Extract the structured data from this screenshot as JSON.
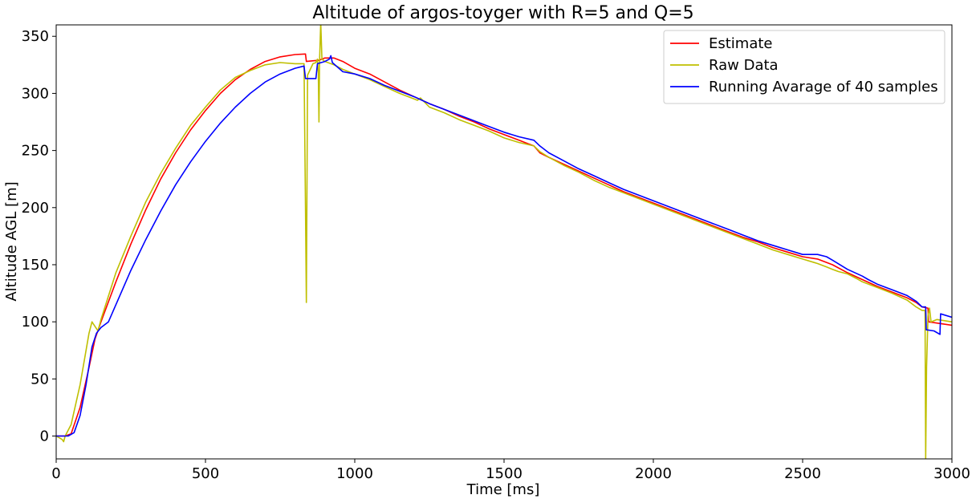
{
  "chart_data": {
    "type": "line",
    "title": "Altitude of argos-toyger with R=5 and Q=5",
    "xlabel": "Time [ms]",
    "ylabel": "Altitude AGL [m]",
    "xlim": [
      0,
      3000
    ],
    "ylim": [
      -20,
      360
    ],
    "xticks": [
      0,
      500,
      1000,
      1500,
      2000,
      2500,
      3000
    ],
    "yticks": [
      0,
      50,
      100,
      150,
      200,
      250,
      300,
      350
    ],
    "grid": false,
    "legend_position": "top-right",
    "series": [
      {
        "name": "Estimate",
        "color": "#ff0000",
        "points": [
          [
            0,
            0
          ],
          [
            30,
            0
          ],
          [
            50,
            2
          ],
          [
            80,
            25
          ],
          [
            110,
            60
          ],
          [
            130,
            85
          ],
          [
            150,
            100
          ],
          [
            200,
            135
          ],
          [
            250,
            168
          ],
          [
            300,
            198
          ],
          [
            350,
            225
          ],
          [
            400,
            248
          ],
          [
            450,
            268
          ],
          [
            500,
            285
          ],
          [
            550,
            300
          ],
          [
            600,
            312
          ],
          [
            650,
            321
          ],
          [
            700,
            328
          ],
          [
            750,
            332
          ],
          [
            800,
            334
          ],
          [
            835,
            334.5
          ],
          [
            838,
            328
          ],
          [
            880,
            329
          ],
          [
            900,
            331
          ],
          [
            930,
            331
          ],
          [
            960,
            328
          ],
          [
            1000,
            322
          ],
          [
            1050,
            317
          ],
          [
            1100,
            310
          ],
          [
            1150,
            303
          ],
          [
            1200,
            297
          ],
          [
            1250,
            291
          ],
          [
            1300,
            286
          ],
          [
            1350,
            280
          ],
          [
            1400,
            275
          ],
          [
            1450,
            269
          ],
          [
            1500,
            264
          ],
          [
            1550,
            259
          ],
          [
            1580,
            256
          ],
          [
            1600,
            254
          ],
          [
            1620,
            248
          ],
          [
            1650,
            244
          ],
          [
            1700,
            238
          ],
          [
            1750,
            232
          ],
          [
            1800,
            226
          ],
          [
            1850,
            220
          ],
          [
            1900,
            214
          ],
          [
            1950,
            209
          ],
          [
            2000,
            204
          ],
          [
            2050,
            199
          ],
          [
            2100,
            194
          ],
          [
            2150,
            189
          ],
          [
            2200,
            184
          ],
          [
            2250,
            179
          ],
          [
            2300,
            174
          ],
          [
            2350,
            170
          ],
          [
            2400,
            165
          ],
          [
            2450,
            161
          ],
          [
            2500,
            157
          ],
          [
            2550,
            155
          ],
          [
            2600,
            150
          ],
          [
            2650,
            143
          ],
          [
            2700,
            137
          ],
          [
            2750,
            131
          ],
          [
            2800,
            126
          ],
          [
            2850,
            121
          ],
          [
            2880,
            117
          ],
          [
            2900,
            113
          ],
          [
            2920,
            112
          ],
          [
            2922,
            100
          ],
          [
            3000,
            97
          ]
        ]
      },
      {
        "name": "Raw Data",
        "color": "#bfbf00",
        "points": [
          [
            0,
            0
          ],
          [
            20,
            -3
          ],
          [
            25,
            -5
          ],
          [
            30,
            0
          ],
          [
            50,
            10
          ],
          [
            80,
            45
          ],
          [
            110,
            90
          ],
          [
            120,
            100
          ],
          [
            130,
            96
          ],
          [
            140,
            92
          ],
          [
            150,
            102
          ],
          [
            200,
            143
          ],
          [
            250,
            175
          ],
          [
            300,
            205
          ],
          [
            350,
            230
          ],
          [
            400,
            252
          ],
          [
            450,
            272
          ],
          [
            500,
            288
          ],
          [
            550,
            303
          ],
          [
            600,
            314
          ],
          [
            650,
            320
          ],
          [
            700,
            325
          ],
          [
            750,
            327
          ],
          [
            800,
            326
          ],
          [
            830,
            326
          ],
          [
            835,
            200
          ],
          [
            838,
            117
          ],
          [
            842,
            316
          ],
          [
            860,
            326
          ],
          [
            870,
            327
          ],
          [
            875,
            330
          ],
          [
            878,
            318
          ],
          [
            880,
            275
          ],
          [
            882,
            327
          ],
          [
            886,
            362
          ],
          [
            890,
            330
          ],
          [
            900,
            328
          ],
          [
            930,
            325
          ],
          [
            960,
            321
          ],
          [
            1000,
            317
          ],
          [
            1050,
            312
          ],
          [
            1100,
            306
          ],
          [
            1150,
            300
          ],
          [
            1200,
            295
          ],
          [
            1210,
            294
          ],
          [
            1220,
            296
          ],
          [
            1250,
            288
          ],
          [
            1300,
            283
          ],
          [
            1350,
            277
          ],
          [
            1400,
            272
          ],
          [
            1450,
            267
          ],
          [
            1500,
            261
          ],
          [
            1550,
            257
          ],
          [
            1600,
            254
          ],
          [
            1620,
            249
          ],
          [
            1650,
            244
          ],
          [
            1700,
            237
          ],
          [
            1750,
            231
          ],
          [
            1800,
            224
          ],
          [
            1850,
            218
          ],
          [
            1900,
            213
          ],
          [
            1950,
            208
          ],
          [
            2000,
            203
          ],
          [
            2050,
            198
          ],
          [
            2100,
            193
          ],
          [
            2150,
            188
          ],
          [
            2200,
            183
          ],
          [
            2250,
            178
          ],
          [
            2300,
            173
          ],
          [
            2350,
            168
          ],
          [
            2400,
            163
          ],
          [
            2450,
            159
          ],
          [
            2500,
            155
          ],
          [
            2550,
            151
          ],
          [
            2580,
            148
          ],
          [
            2600,
            146
          ],
          [
            2620,
            144
          ],
          [
            2650,
            142
          ],
          [
            2680,
            138
          ],
          [
            2700,
            135
          ],
          [
            2750,
            130
          ],
          [
            2800,
            125
          ],
          [
            2850,
            119
          ],
          [
            2880,
            113
          ],
          [
            2900,
            110
          ],
          [
            2910,
            110
          ],
          [
            2912,
            -20
          ],
          [
            2915,
            60
          ],
          [
            2920,
            105
          ],
          [
            2925,
            112
          ],
          [
            2930,
            100
          ],
          [
            2950,
            102
          ],
          [
            3000,
            100
          ]
        ]
      },
      {
        "name": "Running Avarage of 40 samples",
        "color": "#0000ff",
        "points": [
          [
            0,
            0
          ],
          [
            40,
            0
          ],
          [
            60,
            3
          ],
          [
            80,
            18
          ],
          [
            100,
            45
          ],
          [
            120,
            78
          ],
          [
            135,
            90
          ],
          [
            150,
            95
          ],
          [
            175,
            100
          ],
          [
            200,
            115
          ],
          [
            250,
            145
          ],
          [
            300,
            172
          ],
          [
            350,
            197
          ],
          [
            400,
            220
          ],
          [
            450,
            240
          ],
          [
            500,
            258
          ],
          [
            550,
            274
          ],
          [
            600,
            288
          ],
          [
            650,
            300
          ],
          [
            700,
            310
          ],
          [
            750,
            317
          ],
          [
            800,
            322
          ],
          [
            830,
            324
          ],
          [
            835,
            313
          ],
          [
            870,
            313
          ],
          [
            875,
            326
          ],
          [
            900,
            328
          ],
          [
            915,
            330
          ],
          [
            920,
            333
          ],
          [
            925,
            327
          ],
          [
            960,
            319
          ],
          [
            1000,
            317
          ],
          [
            1050,
            313
          ],
          [
            1100,
            307
          ],
          [
            1150,
            302
          ],
          [
            1200,
            297
          ],
          [
            1250,
            291
          ],
          [
            1300,
            286
          ],
          [
            1350,
            281
          ],
          [
            1400,
            276
          ],
          [
            1450,
            271
          ],
          [
            1500,
            266
          ],
          [
            1550,
            262
          ],
          [
            1600,
            259
          ],
          [
            1620,
            254
          ],
          [
            1650,
            248
          ],
          [
            1700,
            241
          ],
          [
            1750,
            234
          ],
          [
            1800,
            228
          ],
          [
            1850,
            222
          ],
          [
            1900,
            216
          ],
          [
            1950,
            211
          ],
          [
            2000,
            206
          ],
          [
            2050,
            201
          ],
          [
            2100,
            196
          ],
          [
            2150,
            191
          ],
          [
            2200,
            186
          ],
          [
            2250,
            181
          ],
          [
            2300,
            176
          ],
          [
            2350,
            171
          ],
          [
            2400,
            167
          ],
          [
            2450,
            163
          ],
          [
            2500,
            159
          ],
          [
            2550,
            159
          ],
          [
            2580,
            157
          ],
          [
            2600,
            154
          ],
          [
            2650,
            146
          ],
          [
            2700,
            140
          ],
          [
            2720,
            137
          ],
          [
            2750,
            133
          ],
          [
            2800,
            128
          ],
          [
            2850,
            123
          ],
          [
            2880,
            118
          ],
          [
            2900,
            113
          ],
          [
            2912,
            113
          ],
          [
            2914,
            93
          ],
          [
            2940,
            92
          ],
          [
            2960,
            89
          ],
          [
            2962,
            107
          ],
          [
            3000,
            104
          ]
        ]
      }
    ]
  }
}
